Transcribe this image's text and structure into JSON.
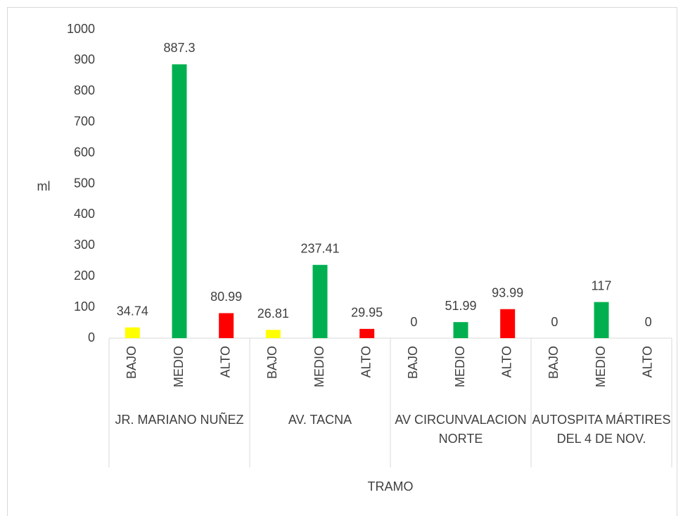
{
  "chart_data": {
    "type": "bar",
    "y_label": "ml",
    "x_label": "TRAMO",
    "colors": [
      "#ffff00",
      "#00b050",
      "#ff0000"
    ],
    "groups": [
      {
        "name": "JR. MARIANO NUÑEZ",
        "categories": [
          "BAJO",
          "MEDIO",
          "ALTO"
        ],
        "values": [
          34.74,
          887.3,
          80.99
        ]
      },
      {
        "name": "AV. TACNA",
        "categories": [
          "BAJO",
          "MEDIO",
          "ALTO"
        ],
        "values": [
          26.81,
          237.41,
          29.95
        ]
      },
      {
        "name": "AV CIRCUNVALACION NORTE",
        "categories": [
          "BAJO",
          "MEDIO",
          "ALTO"
        ],
        "values": [
          0,
          51.99,
          93.99
        ]
      },
      {
        "name": "AUTOSPITA MÁRTIRES DEL 4 DE NOV.",
        "categories": [
          "BAJO",
          "MEDIO",
          "ALTO"
        ],
        "values": [
          0,
          117,
          0
        ]
      }
    ],
    "ylim": [
      0,
      1000
    ],
    "yticks": [
      0,
      100,
      200,
      300,
      400,
      500,
      600,
      700,
      800,
      900,
      1000
    ]
  }
}
